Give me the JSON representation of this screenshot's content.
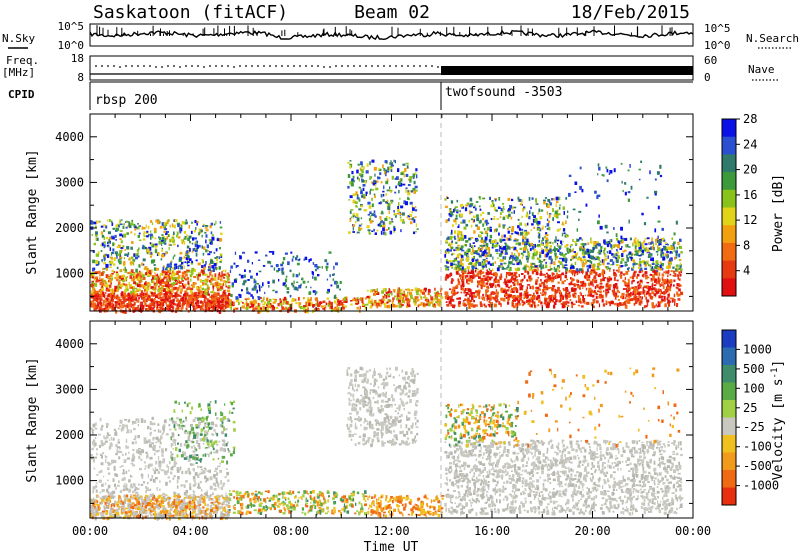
{
  "header": {
    "station": "Saskatoon (fitACF)",
    "beam": "Beam 02",
    "date": "18/Feb/2015"
  },
  "sky_panel": {
    "left_label": "N.Sky",
    "right_label": "N.Search",
    "left_ticks": [
      "10^5",
      "10^0"
    ],
    "right_ticks": [
      "10^5",
      "10^0"
    ]
  },
  "freq_panel": {
    "left_label_top": "Freq.",
    "left_label_unit": "[MHz]",
    "right_label": "Nave",
    "left_ticks": [
      "18",
      "8"
    ],
    "right_ticks": [
      "60",
      "0"
    ]
  },
  "cpid_panel": {
    "label": "CPID",
    "segments": [
      {
        "name": "rbsp 200",
        "start_hour": 0
      },
      {
        "name": "twofsound -3503",
        "start_hour": 14.1
      }
    ]
  },
  "chart_data": [
    {
      "type": "heatmap",
      "title": "Power",
      "xlabel": "",
      "ylabel": "Slant Range [km]",
      "x_range_hours": [
        0,
        24
      ],
      "y_range_km": [
        180,
        4500
      ],
      "y_ticks": [
        1000,
        2000,
        3000,
        4000
      ],
      "colorbar": {
        "label": "Power [dB]",
        "ticks": [
          "4",
          "8",
          "12",
          "16",
          "20",
          "24",
          "28"
        ],
        "colors": [
          "#0a10e8",
          "#2a4fd0",
          "#2f7a6a",
          "#3c9a3c",
          "#88c21a",
          "#e0d418",
          "#f2a010",
          "#f06b12",
          "#e83a10",
          "#e01010"
        ]
      }
    },
    {
      "type": "heatmap",
      "title": "Velocity",
      "xlabel": "Time UT",
      "ylabel": "Slant Range [km]",
      "x_range_hours": [
        0,
        24
      ],
      "x_ticks": [
        "00:00",
        "04:00",
        "08:00",
        "12:00",
        "16:00",
        "20:00",
        "00:00"
      ],
      "y_range_km": [
        180,
        4500
      ],
      "y_ticks": [
        1000,
        2000,
        3000,
        4000
      ],
      "colorbar": {
        "label": "Velocity [m s^-1]",
        "ticks": [
          "1000",
          "500",
          "100",
          "25",
          "-25",
          "-100",
          "-500",
          "-1000"
        ],
        "colors": [
          "#1a3cc0",
          "#2c6bb0",
          "#3f8c6c",
          "#5aaa45",
          "#9fd045",
          "#c8c8c0",
          "#f0c020",
          "#f29a1c",
          "#f06a14",
          "#e83010"
        ]
      }
    }
  ]
}
